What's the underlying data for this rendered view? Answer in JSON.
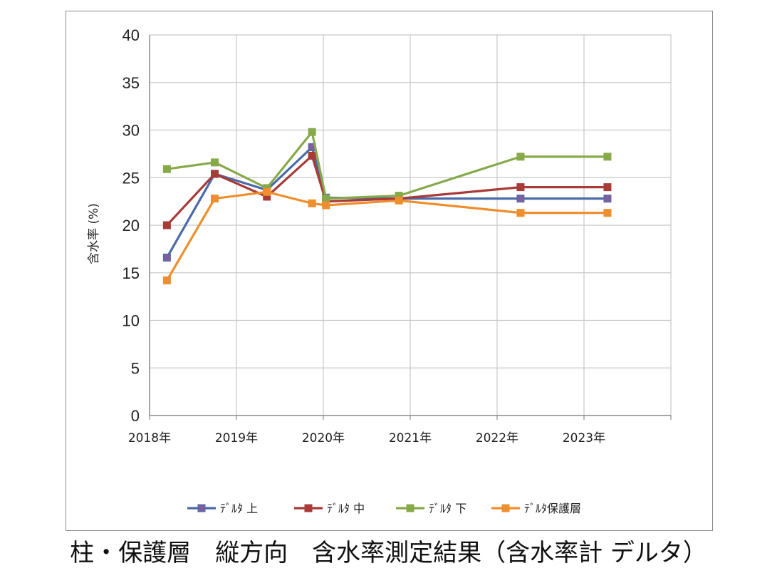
{
  "chart_data": {
    "type": "line",
    "title": "",
    "ylabel": "含水率 (%)",
    "xlabel": "",
    "ylim": [
      0,
      40
    ],
    "yticks": [
      0,
      5,
      10,
      15,
      20,
      25,
      30,
      35,
      40
    ],
    "xlim": [
      2018,
      2024
    ],
    "xticks": [
      {
        "value": 2018,
        "label": "2018年"
      },
      {
        "value": 2019,
        "label": "2019年"
      },
      {
        "value": 2020,
        "label": "2020年"
      },
      {
        "value": 2021,
        "label": "2021年"
      },
      {
        "value": 2022,
        "label": "2022年"
      },
      {
        "value": 2023,
        "label": "2023年"
      }
    ],
    "grid": true,
    "legend_position": "bottom",
    "series": [
      {
        "name": "ﾃﾞﾙﾀ 上",
        "color": "#4a6aa8",
        "marker": "#7d5fa0",
        "points": [
          [
            2018.2,
            16.6
          ],
          [
            2018.75,
            25.4
          ],
          [
            2019.35,
            23.7
          ],
          [
            2019.87,
            28.2
          ],
          [
            2020.03,
            22.9
          ],
          [
            2020.87,
            22.8
          ],
          [
            2022.27,
            22.8
          ],
          [
            2023.27,
            22.8
          ]
        ]
      },
      {
        "name": "ﾃﾞﾙﾀ 中",
        "color": "#a83a38",
        "marker": "#a83a38",
        "points": [
          [
            2018.2,
            20.0
          ],
          [
            2018.75,
            25.4
          ],
          [
            2019.35,
            23.0
          ],
          [
            2019.87,
            27.3
          ],
          [
            2020.03,
            22.5
          ],
          [
            2020.87,
            22.8
          ],
          [
            2022.27,
            24.0
          ],
          [
            2023.27,
            24.0
          ]
        ]
      },
      {
        "name": "ﾃﾞﾙﾀ 下",
        "color": "#87a94a",
        "marker": "#87a94a",
        "points": [
          [
            2018.2,
            25.9
          ],
          [
            2018.75,
            26.6
          ],
          [
            2019.35,
            23.9
          ],
          [
            2019.87,
            29.8
          ],
          [
            2020.03,
            22.8
          ],
          [
            2020.87,
            23.1
          ],
          [
            2022.27,
            27.2
          ],
          [
            2023.27,
            27.2
          ]
        ]
      },
      {
        "name": "ﾃﾞﾙﾀ保護層",
        "color": "#ef8e2c",
        "marker": "#ef8e2c",
        "points": [
          [
            2018.2,
            14.2
          ],
          [
            2018.75,
            22.8
          ],
          [
            2019.35,
            23.5
          ],
          [
            2019.87,
            22.3
          ],
          [
            2020.03,
            22.1
          ],
          [
            2020.87,
            22.6
          ],
          [
            2022.27,
            21.3
          ],
          [
            2023.27,
            21.3
          ]
        ]
      }
    ]
  },
  "caption": "柱・保護層　縦方向　含水率測定結果（含水率計 デルタ）"
}
